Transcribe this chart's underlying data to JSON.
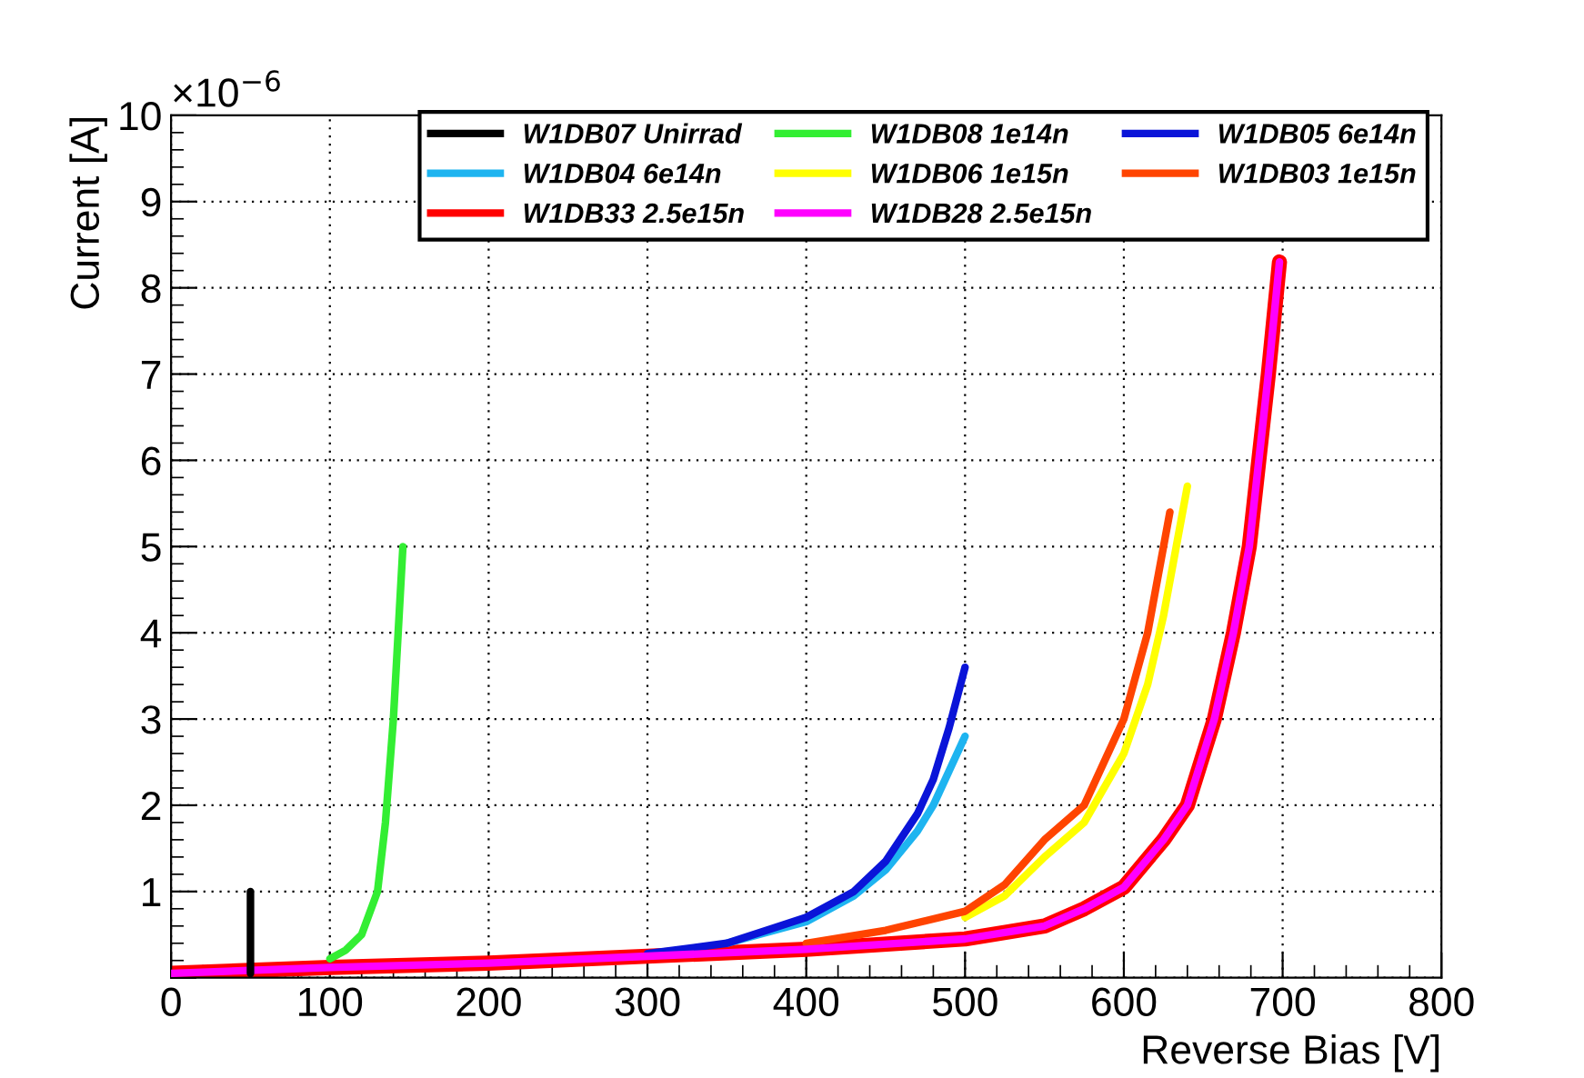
{
  "chart_data": {
    "type": "line",
    "xlabel": "Reverse Bias [V]",
    "ylabel": "Current [A]",
    "annotations": [
      "×10$^{−6}$"
    ],
    "xlim": [
      0,
      800
    ],
    "ylim": [
      0,
      10
    ],
    "xticks": [
      0,
      100,
      200,
      300,
      400,
      500,
      600,
      700,
      800
    ],
    "yticks": [
      {
        "value": 0,
        "label": null
      },
      1,
      2,
      3,
      4,
      5,
      6,
      7,
      8,
      9,
      10
    ],
    "grid": true,
    "legend": "top right",
    "line_style": "solid",
    "marker": "none",
    "series": [
      {
        "name": "W1DB07 Unirrad",
        "color": "#000000",
        "x": [
          50,
          50
        ],
        "values": [
          0.05,
          1.0
        ]
      },
      {
        "name": "W1DB04 6e14n",
        "color": "#1eb4f0",
        "x": [
          350,
          400,
          430,
          450,
          470,
          480,
          490,
          500
        ],
        "values": [
          0.4,
          0.65,
          0.95,
          1.25,
          1.7,
          2.0,
          2.4,
          2.8
        ]
      },
      {
        "name": "W1DB33 2.5e15n",
        "color": "#ff0000",
        "x": [
          0,
          100,
          200,
          300,
          400,
          500,
          550,
          575,
          600,
          625,
          640,
          657,
          669,
          679,
          685,
          691,
          698
        ],
        "values": [
          0.05,
          0.12,
          0.17,
          0.25,
          0.33,
          0.45,
          0.6,
          0.8,
          1.05,
          1.6,
          2.0,
          3.0,
          4.0,
          5.0,
          6.0,
          7.0,
          8.3
        ]
      },
      {
        "name": "W1DB08 1e14n",
        "color": "#33ee33",
        "x": [
          100,
          110,
          120,
          130,
          135,
          140,
          143,
          146
        ],
        "values": [
          0.22,
          0.32,
          0.5,
          1.0,
          1.8,
          3.0,
          4.0,
          5.0
        ]
      },
      {
        "name": "W1DB06 1e15n",
        "color": "#ffff00",
        "x": [
          500,
          525,
          550,
          575,
          600,
          615,
          625,
          640
        ],
        "values": [
          0.7,
          0.95,
          1.4,
          1.8,
          2.6,
          3.4,
          4.2,
          5.7
        ]
      },
      {
        "name": "W1DB28 2.5e15n",
        "color": "#ff00ff",
        "x": [
          0,
          100,
          200,
          300,
          400,
          500,
          550,
          575,
          600,
          625,
          640,
          657,
          669,
          679,
          685,
          691,
          698
        ],
        "values": [
          0.05,
          0.12,
          0.17,
          0.25,
          0.33,
          0.45,
          0.6,
          0.8,
          1.05,
          1.6,
          2.0,
          3.0,
          4.0,
          5.0,
          6.0,
          7.0,
          8.3
        ]
      },
      {
        "name": "W1DB05 6e14n",
        "color": "#0a14d8",
        "x": [
          300,
          350,
          400,
          430,
          450,
          470,
          480,
          490,
          500
        ],
        "values": [
          0.28,
          0.4,
          0.7,
          1.0,
          1.35,
          1.9,
          2.3,
          2.9,
          3.6
        ]
      },
      {
        "name": "W1DB03 1e15n",
        "color": "#ff4400",
        "x": [
          400,
          450,
          500,
          525,
          550,
          575,
          600,
          615,
          629
        ],
        "values": [
          0.4,
          0.55,
          0.77,
          1.08,
          1.6,
          2.0,
          3.0,
          4.0,
          5.4
        ]
      }
    ]
  }
}
